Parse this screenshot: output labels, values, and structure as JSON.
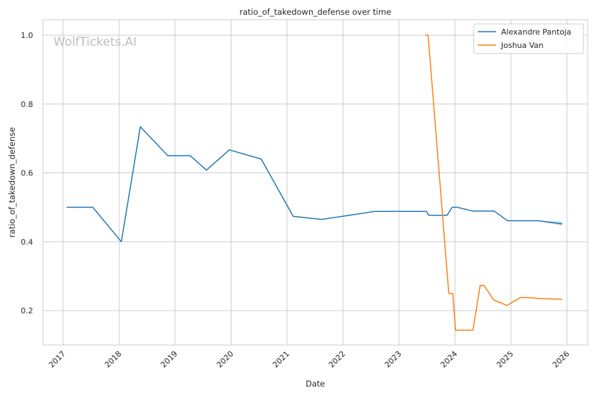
{
  "chart_data": {
    "type": "line",
    "title": "ratio_of_takedown_defense over time",
    "xlabel": "Date",
    "ylabel": "ratio_of_takedown_defense",
    "watermark": "WolfTickets.AI",
    "xlim": [
      2016.64,
      2026.37
    ],
    "ylim": [
      0.1,
      1.045
    ],
    "x_ticks": [
      2017,
      2018,
      2019,
      2020,
      2021,
      2022,
      2023,
      2024,
      2025,
      2026
    ],
    "x_tick_labels": [
      "2017",
      "2018",
      "2019",
      "2020",
      "2021",
      "2022",
      "2023",
      "2024",
      "2025",
      "2026"
    ],
    "y_ticks": [
      0.2,
      0.4,
      0.6,
      0.8,
      1.0
    ],
    "y_tick_labels": [
      "0.2",
      "0.4",
      "0.6",
      "0.8",
      "1.0"
    ],
    "grid": true,
    "legend_position": "top-right",
    "series": [
      {
        "name": "Alexandre Pantoja",
        "color": "#1f77b4",
        "band_color": "#1f77b4",
        "points": [
          [
            2017.07,
            0.5
          ],
          [
            2017.53,
            0.5
          ],
          [
            2018.04,
            0.4
          ],
          [
            2018.38,
            0.734
          ],
          [
            2018.87,
            0.65
          ],
          [
            2019.27,
            0.65
          ],
          [
            2019.56,
            0.608
          ],
          [
            2019.97,
            0.667
          ],
          [
            2020.54,
            0.64
          ],
          [
            2021.11,
            0.474
          ],
          [
            2021.62,
            0.465
          ],
          [
            2022.57,
            0.488
          ],
          [
            2023.49,
            0.488
          ],
          [
            2023.53,
            0.477
          ],
          [
            2023.86,
            0.477
          ],
          [
            2023.95,
            0.5
          ],
          [
            2024.04,
            0.5
          ],
          [
            2024.32,
            0.489
          ],
          [
            2024.7,
            0.489
          ],
          [
            2024.94,
            0.461
          ],
          [
            2025.48,
            0.461
          ],
          [
            2025.91,
            0.452
          ]
        ],
        "band": [
          [
            2025.48,
            0.461,
            0.461
          ],
          [
            2025.91,
            0.446,
            0.459
          ]
        ]
      },
      {
        "name": "Joshua Van",
        "color": "#ff7f0e",
        "points": [
          [
            2023.47,
            1.0
          ],
          [
            2023.52,
            1.0
          ],
          [
            2023.89,
            0.25
          ],
          [
            2023.96,
            0.25
          ],
          [
            2024.01,
            0.143
          ],
          [
            2024.32,
            0.143
          ],
          [
            2024.45,
            0.273
          ],
          [
            2024.52,
            0.273
          ],
          [
            2024.69,
            0.231
          ],
          [
            2024.93,
            0.215
          ],
          [
            2025.17,
            0.238
          ],
          [
            2025.39,
            0.237
          ],
          [
            2025.49,
            0.235
          ],
          [
            2025.91,
            0.233
          ]
        ]
      }
    ]
  }
}
